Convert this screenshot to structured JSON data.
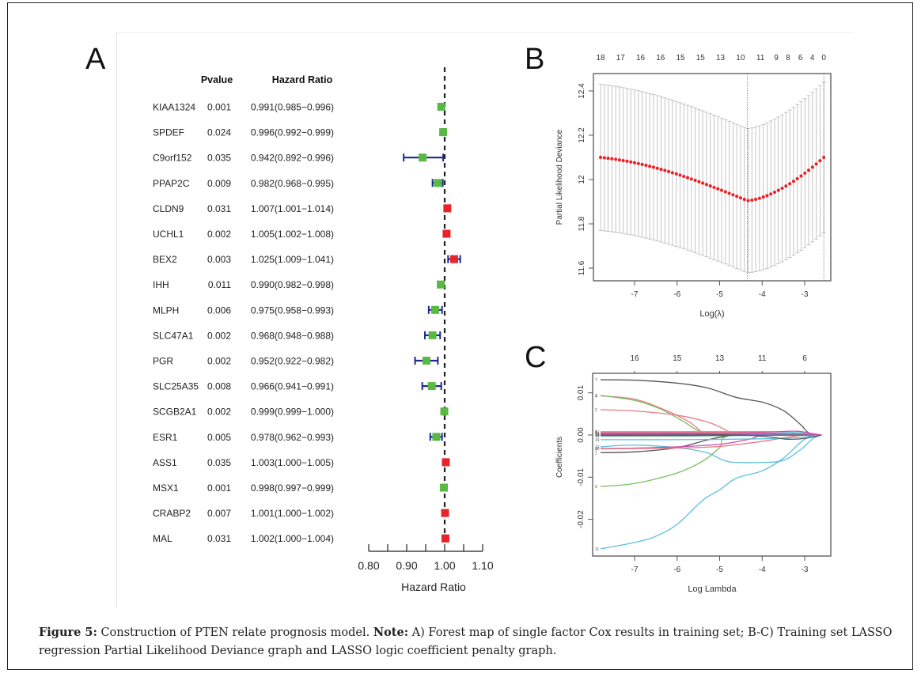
{
  "panels": {
    "A": {
      "label": "A"
    },
    "B": {
      "label": "B"
    },
    "C": {
      "label": "C"
    }
  },
  "caption": {
    "figure_label": "Figure 5:",
    "text_1": " Construction of PTEN relate prognosis model. ",
    "note_label": "Note:",
    "text_2": " A) Forest map of single factor Cox results in training set; B-C) Training set LASSO regression Partial Likelihood Deviance graph and LASSO logic coefficient penalty graph."
  },
  "colors": {
    "protective": "#5ab845",
    "risk": "#e8242a",
    "ci_line": "#1c2a8c",
    "ref_line": "#222222",
    "deviance_point": "#e8242a",
    "errorbar": "#bdbdbd"
  },
  "chart_data": [
    {
      "type": "forest",
      "panel": "A",
      "title": "",
      "columns": {
        "pvalue": "Pvalue",
        "hr": "Hazard Ratio"
      },
      "xlabel": "Hazard Ratio",
      "xlim": [
        0.8,
        1.1
      ],
      "xticks": [
        "0.80",
        "0.90",
        "1.00",
        "1.10"
      ],
      "xticks_minor": [
        0.85,
        0.95,
        1.05
      ],
      "reference": 1.0,
      "rows": [
        {
          "gene": "KIAA1324",
          "pvalue": "0.001",
          "hr_text": "0.991(0.985−0.996)",
          "hr": 0.991,
          "lo": 0.985,
          "hi": 0.996
        },
        {
          "gene": "SPDEF",
          "pvalue": "0.024",
          "hr_text": "0.996(0.992−0.999)",
          "hr": 0.996,
          "lo": 0.992,
          "hi": 0.999
        },
        {
          "gene": "C9orf152",
          "pvalue": "0.035",
          "hr_text": "0.942(0.892−0.996)",
          "hr": 0.942,
          "lo": 0.892,
          "hi": 0.996
        },
        {
          "gene": "PPAP2C",
          "pvalue": "0.009",
          "hr_text": "0.982(0.968−0.995)",
          "hr": 0.982,
          "lo": 0.968,
          "hi": 0.995
        },
        {
          "gene": "CLDN9",
          "pvalue": "0.031",
          "hr_text": "1.007(1.001−1.014)",
          "hr": 1.007,
          "lo": 1.001,
          "hi": 1.014
        },
        {
          "gene": "UCHL1",
          "pvalue": "0.002",
          "hr_text": "1.005(1.002−1.008)",
          "hr": 1.005,
          "lo": 1.002,
          "hi": 1.008
        },
        {
          "gene": "BEX2",
          "pvalue": "0.003",
          "hr_text": "1.025(1.009−1.041)",
          "hr": 1.025,
          "lo": 1.009,
          "hi": 1.041
        },
        {
          "gene": "IHH",
          "pvalue": "0.011",
          "hr_text": "0.990(0.982−0.998)",
          "hr": 0.99,
          "lo": 0.982,
          "hi": 0.998
        },
        {
          "gene": "MLPH",
          "pvalue": "0.006",
          "hr_text": "0.975(0.958−0.993)",
          "hr": 0.975,
          "lo": 0.958,
          "hi": 0.993
        },
        {
          "gene": "SLC47A1",
          "pvalue": "0.002",
          "hr_text": "0.968(0.948−0.988)",
          "hr": 0.968,
          "lo": 0.948,
          "hi": 0.988
        },
        {
          "gene": "PGR",
          "pvalue": "0.002",
          "hr_text": "0.952(0.922−0.982)",
          "hr": 0.952,
          "lo": 0.922,
          "hi": 0.982
        },
        {
          "gene": "SLC25A35",
          "pvalue": "0.008",
          "hr_text": "0.966(0.941−0.991)",
          "hr": 0.966,
          "lo": 0.941,
          "hi": 0.991
        },
        {
          "gene": "SCGB2A1",
          "pvalue": "0.002",
          "hr_text": "0.999(0.999−1.000)",
          "hr": 0.999,
          "lo": 0.999,
          "hi": 1.0
        },
        {
          "gene": "ESR1",
          "pvalue": "0.005",
          "hr_text": "0.978(0.962−0.993)",
          "hr": 0.978,
          "lo": 0.962,
          "hi": 0.993
        },
        {
          "gene": "ASS1",
          "pvalue": "0.035",
          "hr_text": "1.003(1.000−1.005)",
          "hr": 1.003,
          "lo": 1.0,
          "hi": 1.005
        },
        {
          "gene": "MSX1",
          "pvalue": "0.001",
          "hr_text": "0.998(0.997−0.999)",
          "hr": 0.998,
          "lo": 0.997,
          "hi": 0.999
        },
        {
          "gene": "CRABP2",
          "pvalue": "0.007",
          "hr_text": "1.001(1.000−1.002)",
          "hr": 1.001,
          "lo": 1.0,
          "hi": 1.002
        },
        {
          "gene": "MAL",
          "pvalue": "0.031",
          "hr_text": "1.002(1.000−1.004)",
          "hr": 1.002,
          "lo": 1.0,
          "hi": 1.004
        }
      ]
    },
    {
      "type": "scatter",
      "panel": "B",
      "title": "",
      "xlabel": "Log(λ)",
      "ylabel": "Partial Likelihood Deviance",
      "xlim": [
        -7.9,
        -2.45
      ],
      "ylim": [
        11.55,
        12.47
      ],
      "xticks": [
        -7,
        -6,
        -5,
        -4,
        -3
      ],
      "yticks": [
        11.6,
        11.8,
        12.0,
        12.2,
        12.4
      ],
      "top_axis_labels": [
        "18",
        "17",
        "16",
        "16",
        "15",
        "15",
        "13",
        "10",
        "11",
        "9",
        "8",
        "6",
        "4",
        "0"
      ],
      "top_axis_positions": [
        -7.8,
        -7.33,
        -6.86,
        -6.39,
        -5.92,
        -5.45,
        -4.98,
        -4.51,
        -4.04,
        -3.67,
        -3.39,
        -3.1,
        -2.82,
        -2.55
      ],
      "vlines": [
        -4.35,
        -2.55
      ],
      "log_lambda_range": [
        -7.8,
        -2.55
      ],
      "n_points": 60,
      "min_log_lambda": -4.35,
      "min_deviance": 11.905,
      "deviance_at_start": 12.1,
      "deviance_at_end": 12.1,
      "errorbar_halfwidth_start": 0.33,
      "errorbar_halfwidth_min": 0.325,
      "errorbar_halfwidth_end": 0.34
    },
    {
      "type": "line",
      "panel": "C",
      "title": "",
      "xlabel": "Log Lambda",
      "ylabel": "Coefficients",
      "xlim": [
        -7.9,
        -2.45
      ],
      "ylim": [
        -0.0285,
        0.0148
      ],
      "xticks": [
        -7,
        -6,
        -5,
        -4,
        -3
      ],
      "yticks": [
        -0.02,
        -0.01,
        0.0,
        0.01
      ],
      "ytick_labels": [
        "-0.02",
        "-0.01",
        "0.00",
        "0.01"
      ],
      "top_axis_labels": [
        "16",
        "15",
        "13",
        "11",
        "6"
      ],
      "top_axis_positions": [
        -7,
        -6,
        -5,
        -4,
        -3
      ],
      "series": [
        {
          "name": "7",
          "color": "#555555",
          "x": [
            -7.8,
            -7,
            -6,
            -5.3,
            -4.6,
            -4,
            -3.5,
            -3.1,
            -2.9,
            -2.6
          ],
          "y": [
            0.0131,
            0.013,
            0.0123,
            0.0112,
            0.0089,
            0.0078,
            0.0058,
            0.0025,
            0.0005,
            0.0
          ]
        },
        {
          "name": "4",
          "color": "#e87a86",
          "x": [
            -7.8,
            -7,
            -6.3,
            -5.7,
            -5.35,
            -5.0,
            -2.6
          ],
          "y": [
            0.0093,
            0.0085,
            0.006,
            0.003,
            0.0003,
            0.0,
            0.0
          ]
        },
        {
          "name": "3",
          "color": "#77c05e",
          "x": [
            -7.8,
            -7,
            -6.4,
            -5.9,
            -5.5,
            -5.2,
            -2.6
          ],
          "y": [
            0.0094,
            0.0082,
            0.0062,
            0.0035,
            0.001,
            0.0,
            0.0
          ]
        },
        {
          "name": "2",
          "color": "#e87a86",
          "x": [
            -7.8,
            -7,
            -6,
            -5.2,
            -4.7,
            -4.4,
            -2.6
          ],
          "y": [
            0.006,
            0.0057,
            0.0047,
            0.0028,
            0.0004,
            0.0,
            0.0
          ]
        },
        {
          "name": "9",
          "color": "#77c05e",
          "x": [
            -7.8,
            -7,
            -6,
            -5.4,
            -5,
            -4.7,
            -2.6
          ],
          "y": [
            -0.0122,
            -0.0115,
            -0.009,
            -0.0062,
            -0.003,
            0.0,
            0.0
          ]
        },
        {
          "name": "11",
          "color": "#5bc0de",
          "x": [
            -7.8,
            -7,
            -6.5,
            -6,
            -5.4,
            -5,
            -4.6,
            -4,
            -3.5,
            -3.0,
            -2.6
          ],
          "y": [
            -0.027,
            -0.0255,
            -0.024,
            -0.0212,
            -0.0155,
            -0.013,
            -0.0102,
            -0.0085,
            -0.0055,
            -0.001,
            0.0
          ]
        },
        {
          "name": "1",
          "color": "#555555",
          "x": [
            -7.8,
            -7,
            -6,
            -5.3,
            -4.8,
            -4.3,
            -2.6
          ],
          "y": [
            -0.0042,
            -0.004,
            -0.003,
            -0.0012,
            -0.0002,
            0.0,
            0.0
          ]
        },
        {
          "name": "12",
          "color": "#5bc0de",
          "x": [
            -7.8,
            -7,
            -6,
            -5.3,
            -4.8,
            -4,
            -3.5,
            -3.1,
            -2.8,
            -2.6
          ],
          "y": [
            -0.0028,
            -0.0024,
            -0.003,
            -0.0042,
            -0.0063,
            -0.0065,
            -0.006,
            -0.0035,
            -0.0008,
            0.0
          ]
        },
        {
          "name": "10",
          "color": "#c84fa8",
          "x": [
            -7.8,
            -7,
            -6,
            -5,
            -4.3,
            -3.9,
            -2.6
          ],
          "y": [
            -0.0032,
            -0.0031,
            -0.0028,
            -0.0022,
            -0.001,
            0.0,
            0.0
          ]
        },
        {
          "name": "5",
          "color": "#e87a86",
          "x": [
            -7.8,
            -7,
            -6,
            -5,
            -4,
            -3.4,
            -3,
            -2.6
          ],
          "y": [
            -0.0033,
            -0.0032,
            -0.0031,
            -0.0027,
            -0.0015,
            -0.0005,
            0.0,
            0.0
          ]
        },
        {
          "name": "6",
          "color": "#5bc0de",
          "x": [
            -7.8,
            -6,
            -4,
            -3.2,
            -2.8,
            -2.6
          ],
          "y": [
            0.0008,
            0.0008,
            0.0008,
            0.0006,
            0.0002,
            0.0
          ]
        },
        {
          "name": "8",
          "color": "#c84fa8",
          "x": [
            -7.8,
            -6,
            -4,
            -3.2,
            -2.8,
            -2.6
          ],
          "y": [
            0.0005,
            0.0005,
            0.0007,
            0.0009,
            0.0003,
            0.0
          ]
        },
        {
          "name": "13",
          "color": "#8a6fd1",
          "x": [
            -7.8,
            -6,
            -4,
            -3,
            -2.6
          ],
          "y": [
            0.0003,
            0.0002,
            0.0001,
            0.0001,
            0.0
          ]
        },
        {
          "name": "14",
          "color": "#2e8b57",
          "x": [
            -7.8,
            -6,
            -4,
            -3,
            -2.6
          ],
          "y": [
            -0.0002,
            -0.0002,
            -0.0001,
            0.0,
            0.0
          ]
        },
        {
          "name": "15",
          "color": "#5bc0de",
          "x": [
            -7.8,
            -6,
            -4,
            -3.2,
            -2.8,
            -2.6
          ],
          "y": [
            -0.0011,
            -0.0011,
            -0.0009,
            -0.0006,
            -0.0002,
            0.0
          ]
        },
        {
          "name": "16",
          "color": "#555555",
          "x": [
            -7.8,
            -6,
            -4.5,
            -3.8,
            -3.4,
            -3,
            -2.6
          ],
          "y": [
            0.0,
            0.0,
            0.0,
            -0.0005,
            -0.001,
            -0.0008,
            0.0
          ]
        },
        {
          "name": "17",
          "color": "#e87a86",
          "x": [
            -7.8,
            -6,
            -4,
            -3,
            -2.6
          ],
          "y": [
            0.0007,
            0.0007,
            0.0005,
            0.0002,
            0.0
          ]
        },
        {
          "name": "18",
          "color": "#c84fa8",
          "x": [
            -7.8,
            -6,
            -4,
            -3,
            -2.6
          ],
          "y": [
            0.0002,
            0.0003,
            0.0004,
            0.0002,
            0.0
          ]
        }
      ]
    }
  ]
}
